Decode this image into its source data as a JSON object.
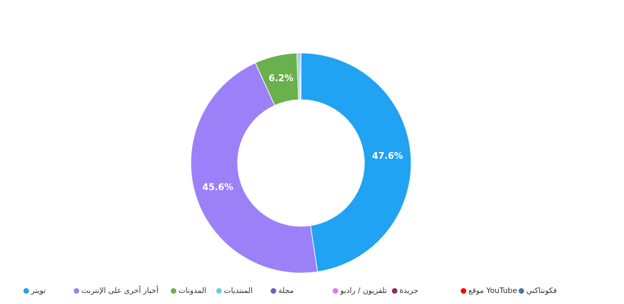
{
  "chart_data": {
    "type": "donut",
    "categories": [
      "تويتر",
      "أخبار أخرى على الإنترنت",
      "المدونات",
      "المنتديات",
      "مجلة",
      "تلفزيون / راديو",
      "جريدة",
      "موقع YouTube",
      "فكونتاكتي"
    ],
    "values": [
      47.6,
      45.6,
      6.2,
      0.3,
      0.2,
      0.1,
      0,
      0,
      0
    ],
    "value_labels": [
      "47.6%",
      "45.6%",
      "6.2%",
      null,
      null,
      null,
      null,
      null,
      null
    ],
    "colors": [
      "#1fa3f2",
      "#9b80f8",
      "#6ab04c",
      "#70cfd6",
      "#7b55c7",
      "#d47fe9",
      "#8b2f5c",
      "#ff0000",
      "#4a76a8"
    ],
    "legend": "bottom"
  }
}
